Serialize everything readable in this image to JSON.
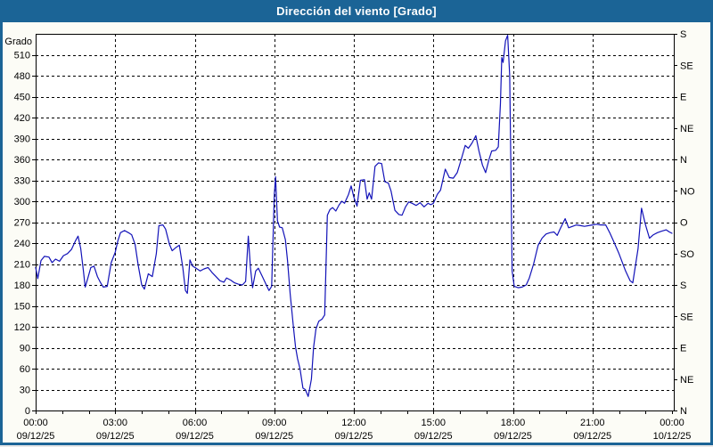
{
  "header": {
    "title": "Dirección del viento [Grado]"
  },
  "colors": {
    "frame_blue": "#1b6496",
    "title_text": "#ffffff",
    "content_bg": "#fcfcf6",
    "plot_bg": "#ffffff",
    "line": "#1212b8",
    "grid": "#000000",
    "axis_text": "#000000"
  },
  "chart_data": {
    "type": "line",
    "title": "Dirección del viento [Grado]",
    "ylabel": "Grado",
    "ylim": [
      0,
      540
    ],
    "xlim_hours": [
      0,
      24
    ],
    "grid": true,
    "legend": "none",
    "y_ticks_left": [
      0,
      30,
      60,
      90,
      120,
      150,
      180,
      210,
      240,
      270,
      300,
      330,
      360,
      390,
      420,
      450,
      480,
      510
    ],
    "y_ticks_right": [
      {
        "deg": 540,
        "label": "S"
      },
      {
        "deg": 495,
        "label": "SE"
      },
      {
        "deg": 450,
        "label": "E"
      },
      {
        "deg": 405,
        "label": "NE"
      },
      {
        "deg": 360,
        "label": "N"
      },
      {
        "deg": 315,
        "label": "NO"
      },
      {
        "deg": 270,
        "label": "O"
      },
      {
        "deg": 225,
        "label": "SO"
      },
      {
        "deg": 180,
        "label": "S"
      },
      {
        "deg": 135,
        "label": "SE"
      },
      {
        "deg": 90,
        "label": "E"
      },
      {
        "deg": 45,
        "label": "NE"
      },
      {
        "deg": 0,
        "label": "N"
      }
    ],
    "x_major_ticks": [
      {
        "hour": 0,
        "time": "00:00",
        "date": "09/12/25"
      },
      {
        "hour": 3,
        "time": "03:00",
        "date": "09/12/25"
      },
      {
        "hour": 6,
        "time": "06:00",
        "date": "09/12/25"
      },
      {
        "hour": 9,
        "time": "09:00",
        "date": "09/12/25"
      },
      {
        "hour": 12,
        "time": "12:00",
        "date": "09/12/25"
      },
      {
        "hour": 15,
        "time": "15:00",
        "date": "09/12/25"
      },
      {
        "hour": 18,
        "time": "18:00",
        "date": "09/12/25"
      },
      {
        "hour": 21,
        "time": "21:00",
        "date": "09/12/25"
      },
      {
        "hour": 24,
        "time": "00:00",
        "date": "10/12/25"
      }
    ],
    "x_minor_tick_every_hours": 1,
    "series": [
      {
        "name": "Dirección del viento",
        "units": "Grado",
        "points": [
          [
            0.0,
            205
          ],
          [
            0.08,
            189
          ],
          [
            0.2,
            215
          ],
          [
            0.33,
            221
          ],
          [
            0.5,
            220
          ],
          [
            0.62,
            212
          ],
          [
            0.75,
            217
          ],
          [
            0.9,
            214
          ],
          [
            1.05,
            222
          ],
          [
            1.2,
            225
          ],
          [
            1.35,
            231
          ],
          [
            1.5,
            243
          ],
          [
            1.6,
            250
          ],
          [
            1.7,
            232
          ],
          [
            1.8,
            200
          ],
          [
            1.87,
            177
          ],
          [
            1.97,
            190
          ],
          [
            2.08,
            205
          ],
          [
            2.2,
            207
          ],
          [
            2.33,
            192
          ],
          [
            2.45,
            183
          ],
          [
            2.55,
            177
          ],
          [
            2.7,
            178
          ],
          [
            2.85,
            212
          ],
          [
            3.0,
            227
          ],
          [
            3.1,
            243
          ],
          [
            3.2,
            255
          ],
          [
            3.35,
            258
          ],
          [
            3.5,
            255
          ],
          [
            3.62,
            252
          ],
          [
            3.75,
            238
          ],
          [
            3.87,
            208
          ],
          [
            4.0,
            180
          ],
          [
            4.1,
            174
          ],
          [
            4.25,
            196
          ],
          [
            4.4,
            192
          ],
          [
            4.55,
            225
          ],
          [
            4.65,
            265
          ],
          [
            4.8,
            266
          ],
          [
            4.9,
            260
          ],
          [
            5.05,
            238
          ],
          [
            5.15,
            229
          ],
          [
            5.3,
            234
          ],
          [
            5.42,
            237
          ],
          [
            5.55,
            205
          ],
          [
            5.65,
            172
          ],
          [
            5.72,
            168
          ],
          [
            5.82,
            216
          ],
          [
            5.92,
            207
          ],
          [
            6.05,
            204
          ],
          [
            6.2,
            200
          ],
          [
            6.35,
            203
          ],
          [
            6.5,
            205
          ],
          [
            6.65,
            198
          ],
          [
            6.8,
            192
          ],
          [
            6.95,
            186
          ],
          [
            7.1,
            184
          ],
          [
            7.2,
            190
          ],
          [
            7.35,
            187
          ],
          [
            7.5,
            183
          ],
          [
            7.65,
            181
          ],
          [
            7.8,
            180
          ],
          [
            7.92,
            185
          ],
          [
            8.02,
            250
          ],
          [
            8.1,
            205
          ],
          [
            8.18,
            176
          ],
          [
            8.3,
            200
          ],
          [
            8.4,
            204
          ],
          [
            8.55,
            192
          ],
          [
            8.7,
            180
          ],
          [
            8.8,
            172
          ],
          [
            8.9,
            178
          ],
          [
            9.0,
            310
          ],
          [
            9.05,
            335
          ],
          [
            9.12,
            272
          ],
          [
            9.2,
            263
          ],
          [
            9.3,
            262
          ],
          [
            9.42,
            245
          ],
          [
            9.5,
            215
          ],
          [
            9.6,
            167
          ],
          [
            9.72,
            120
          ],
          [
            9.8,
            91
          ],
          [
            9.88,
            74
          ],
          [
            9.97,
            60
          ],
          [
            10.08,
            32
          ],
          [
            10.17,
            30
          ],
          [
            10.28,
            20
          ],
          [
            10.4,
            45
          ],
          [
            10.48,
            90
          ],
          [
            10.57,
            117
          ],
          [
            10.68,
            128
          ],
          [
            10.8,
            131
          ],
          [
            10.9,
            137
          ],
          [
            11.0,
            280
          ],
          [
            11.1,
            288
          ],
          [
            11.2,
            291
          ],
          [
            11.32,
            286
          ],
          [
            11.45,
            295
          ],
          [
            11.55,
            300
          ],
          [
            11.65,
            297
          ],
          [
            11.8,
            310
          ],
          [
            11.9,
            322
          ],
          [
            12.0,
            306
          ],
          [
            12.12,
            293
          ],
          [
            12.25,
            330
          ],
          [
            12.4,
            331
          ],
          [
            12.5,
            303
          ],
          [
            12.58,
            312
          ],
          [
            12.67,
            303
          ],
          [
            12.8,
            350
          ],
          [
            12.93,
            355
          ],
          [
            13.05,
            354
          ],
          [
            13.17,
            328
          ],
          [
            13.3,
            326
          ],
          [
            13.4,
            315
          ],
          [
            13.55,
            287
          ],
          [
            13.7,
            281
          ],
          [
            13.82,
            280
          ],
          [
            13.95,
            292
          ],
          [
            14.07,
            299
          ],
          [
            14.2,
            297
          ],
          [
            14.35,
            294
          ],
          [
            14.5,
            298
          ],
          [
            14.65,
            292
          ],
          [
            14.8,
            297
          ],
          [
            14.9,
            295
          ],
          [
            15.0,
            297
          ],
          [
            15.15,
            310
          ],
          [
            15.27,
            316
          ],
          [
            15.45,
            346
          ],
          [
            15.6,
            334
          ],
          [
            15.75,
            333
          ],
          [
            15.9,
            341
          ],
          [
            16.05,
            360
          ],
          [
            16.2,
            380
          ],
          [
            16.32,
            376
          ],
          [
            16.45,
            383
          ],
          [
            16.6,
            394
          ],
          [
            16.72,
            372
          ],
          [
            16.85,
            352
          ],
          [
            16.97,
            341
          ],
          [
            17.1,
            360
          ],
          [
            17.2,
            372
          ],
          [
            17.35,
            373
          ],
          [
            17.45,
            378
          ],
          [
            17.53,
            440
          ],
          [
            17.58,
            506
          ],
          [
            17.63,
            499
          ],
          [
            17.72,
            530
          ],
          [
            17.8,
            538
          ],
          [
            17.88,
            480
          ],
          [
            17.92,
            360
          ],
          [
            17.97,
            200
          ],
          [
            18.05,
            178
          ],
          [
            18.2,
            176
          ],
          [
            18.35,
            177
          ],
          [
            18.5,
            180
          ],
          [
            18.62,
            190
          ],
          [
            18.78,
            210
          ],
          [
            18.95,
            237
          ],
          [
            19.1,
            247
          ],
          [
            19.25,
            253
          ],
          [
            19.4,
            255
          ],
          [
            19.55,
            256
          ],
          [
            19.67,
            251
          ],
          [
            19.8,
            262
          ],
          [
            19.97,
            275
          ],
          [
            20.1,
            262
          ],
          [
            20.25,
            264
          ],
          [
            20.4,
            266
          ],
          [
            20.55,
            265
          ],
          [
            20.7,
            264
          ],
          [
            20.85,
            265
          ],
          [
            21.0,
            266
          ],
          [
            21.15,
            267
          ],
          [
            21.3,
            266
          ],
          [
            21.5,
            266
          ],
          [
            21.65,
            255
          ],
          [
            21.78,
            244
          ],
          [
            22.0,
            225
          ],
          [
            22.25,
            200
          ],
          [
            22.42,
            186
          ],
          [
            22.52,
            183
          ],
          [
            22.72,
            232
          ],
          [
            22.85,
            290
          ],
          [
            23.0,
            266
          ],
          [
            23.15,
            247
          ],
          [
            23.3,
            252
          ],
          [
            23.45,
            255
          ],
          [
            23.6,
            257
          ],
          [
            23.78,
            259
          ],
          [
            23.9,
            256
          ],
          [
            24.0,
            254
          ]
        ]
      }
    ]
  }
}
